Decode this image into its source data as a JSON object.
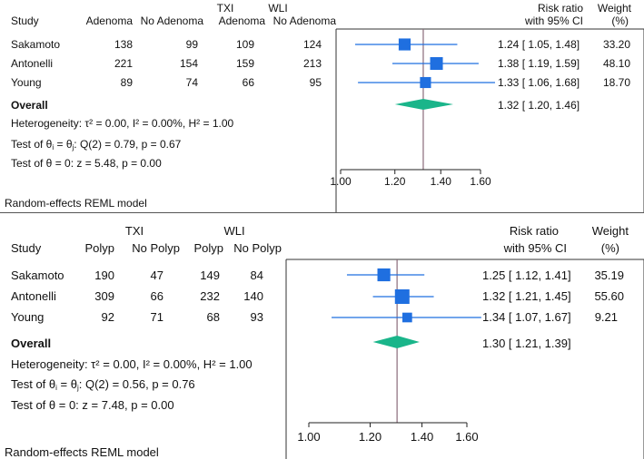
{
  "chart_data": [
    {
      "type": "forest",
      "id": "adenoma",
      "title": "",
      "group_labels": [
        "TXI",
        "WLI"
      ],
      "column_headers": {
        "study": "Study",
        "g1_event": "Adenoma",
        "g1_nonevent": "No Adenoma",
        "g2_event": "Adenoma",
        "g2_nonevent": "No Adenoma",
        "effect_line1": "Risk ratio",
        "effect_line2": "with 95% CI",
        "weight_line1": "Weight",
        "weight_line2": "(%)"
      },
      "studies": [
        {
          "name": "Sakamoto",
          "g1_event": "138",
          "g1_nonevent": "99",
          "g2_event": "109",
          "g2_nonevent": "124",
          "rr": 1.24,
          "lo": 1.05,
          "hi": 1.48,
          "ci_text": "1.24 [ 1.05,  1.48]",
          "weight": 33.2,
          "weight_text": "33.20"
        },
        {
          "name": "Antonelli",
          "g1_event": "221",
          "g1_nonevent": "154",
          "g2_event": "159",
          "g2_nonevent": "213",
          "rr": 1.38,
          "lo": 1.19,
          "hi": 1.59,
          "ci_text": "1.38 [ 1.19,  1.59]",
          "weight": 48.1,
          "weight_text": "48.10"
        },
        {
          "name": "Young",
          "g1_event": "89",
          "g1_nonevent": "74",
          "g2_event": "66",
          "g2_nonevent": "95",
          "rr": 1.33,
          "lo": 1.06,
          "hi": 1.68,
          "ci_text": "1.33 [ 1.06,  1.68]",
          "weight": 18.7,
          "weight_text": "18.70"
        }
      ],
      "overall": {
        "label": "Overall",
        "rr": 1.32,
        "lo": 1.2,
        "hi": 1.46,
        "ci_text": "1.32 [ 1.20,  1.46]"
      },
      "stats": {
        "heterogeneity": "Heterogeneity: τ² = 0.00, I² = 0.00%, H² = 1.00",
        "test_theta_prefix": "Test of θ",
        "test_theta_i": "i",
        "test_theta_eq": " = θ",
        "test_theta_j": "j",
        "test_theta_suffix": ": Q(2) = 0.79, p = 0.67",
        "test_zero": "Test of θ = 0: z = 5.48, p = 0.00"
      },
      "model_note": "Random-effects REML model",
      "xaxis": {
        "ticks": [
          1.0,
          1.2,
          1.4,
          1.6
        ],
        "tick_labels": [
          "1.00",
          "1.20",
          "1.40",
          "1.60"
        ],
        "min": 1.0,
        "max": 1.6,
        "scale": "log"
      },
      "colors": {
        "marker": "#1f6fe0",
        "ci": "#1f6fe0",
        "diamond": "#1ab58a",
        "ref_line": "#8a6b7a",
        "axis": "#222222"
      }
    },
    {
      "type": "forest",
      "id": "polyp",
      "title": "",
      "group_labels": [
        "TXI",
        "WLI"
      ],
      "column_headers": {
        "study": "Study",
        "g1_event": "Polyp",
        "g1_nonevent": "No Polyp",
        "g2_event": "Polyp",
        "g2_nonevent": "No Polyp",
        "effect_line1": "Risk ratio",
        "effect_line2": "with 95% CI",
        "weight_line1": "Weight",
        "weight_line2": "(%)"
      },
      "studies": [
        {
          "name": "Sakamoto",
          "g1_event": "190",
          "g1_nonevent": "47",
          "g2_event": "149",
          "g2_nonevent": "84",
          "rr": 1.25,
          "lo": 1.12,
          "hi": 1.41,
          "ci_text": "1.25 [ 1.12,  1.41]",
          "weight": 35.19,
          "weight_text": "35.19"
        },
        {
          "name": "Antonelli",
          "g1_event": "309",
          "g1_nonevent": "66",
          "g2_event": "232",
          "g2_nonevent": "140",
          "rr": 1.32,
          "lo": 1.21,
          "hi": 1.45,
          "ci_text": "1.32 [ 1.21,  1.45]",
          "weight": 55.6,
          "weight_text": "55.60"
        },
        {
          "name": "Young",
          "g1_event": "92",
          "g1_nonevent": "71",
          "g2_event": "68",
          "g2_nonevent": "93",
          "rr": 1.34,
          "lo": 1.07,
          "hi": 1.67,
          "ci_text": "1.34 [ 1.07,  1.67]",
          "weight": 9.21,
          "weight_text": "9.21"
        }
      ],
      "overall": {
        "label": "Overall",
        "rr": 1.3,
        "lo": 1.21,
        "hi": 1.39,
        "ci_text": "1.30 [ 1.21,  1.39]"
      },
      "stats": {
        "heterogeneity": "Heterogeneity: τ² = 0.00, I² = 0.00%, H² = 1.00",
        "test_theta_prefix": "Test of θ",
        "test_theta_i": "i",
        "test_theta_eq": " = θ",
        "test_theta_j": "j",
        "test_theta_suffix": ": Q(2) = 0.56, p = 0.76",
        "test_zero": "Test of θ = 0: z = 7.48, p = 0.00"
      },
      "model_note": "Random-effects REML model",
      "xaxis": {
        "ticks": [
          1.0,
          1.2,
          1.4,
          1.6
        ],
        "tick_labels": [
          "1.00",
          "1.20",
          "1.40",
          "1.60"
        ],
        "min": 1.0,
        "max": 1.6,
        "scale": "log"
      },
      "colors": {
        "marker": "#1f6fe0",
        "ci": "#1f6fe0",
        "diamond": "#1ab58a",
        "ref_line": "#8a6b7a",
        "axis": "#222222"
      }
    }
  ]
}
